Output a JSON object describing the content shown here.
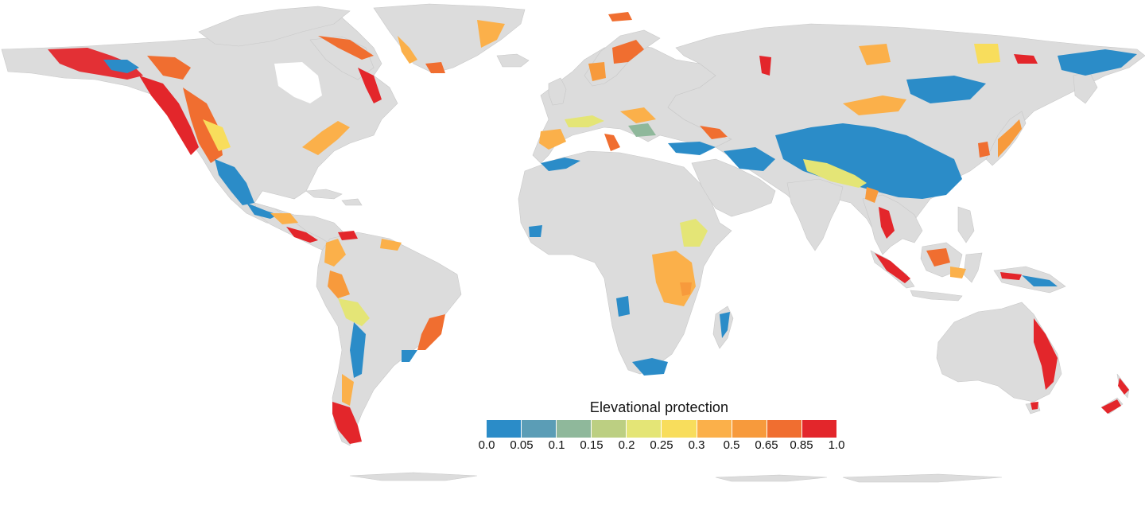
{
  "map": {
    "subject": "world elevational protection",
    "land_color": "#dcdcdc",
    "border_color": "#c8c8c8"
  },
  "legend": {
    "title": "Elevational protection",
    "placement": "bottom-center",
    "ticks": [
      "0.0",
      "0.05",
      "0.1",
      "0.15",
      "0.2",
      "0.25",
      "0.3",
      "0.5",
      "0.65",
      "0.85",
      "1.0"
    ],
    "bins": [
      {
        "range": "0.0–0.05",
        "color": "#2b8cc8"
      },
      {
        "range": "0.05–0.1",
        "color": "#5b9db6"
      },
      {
        "range": "0.1–0.15",
        "color": "#8fb89b"
      },
      {
        "range": "0.15–0.2",
        "color": "#bccf82"
      },
      {
        "range": "0.2–0.25",
        "color": "#e4e576"
      },
      {
        "range": "0.25–0.3",
        "color": "#f8dd5c"
      },
      {
        "range": "0.3–0.5",
        "color": "#fbb04a"
      },
      {
        "range": "0.5–0.65",
        "color": "#f79a3c"
      },
      {
        "range": "0.65–0.85",
        "color": "#f06e30"
      },
      {
        "range": "0.85–1.0",
        "color": "#e3262b"
      }
    ]
  }
}
